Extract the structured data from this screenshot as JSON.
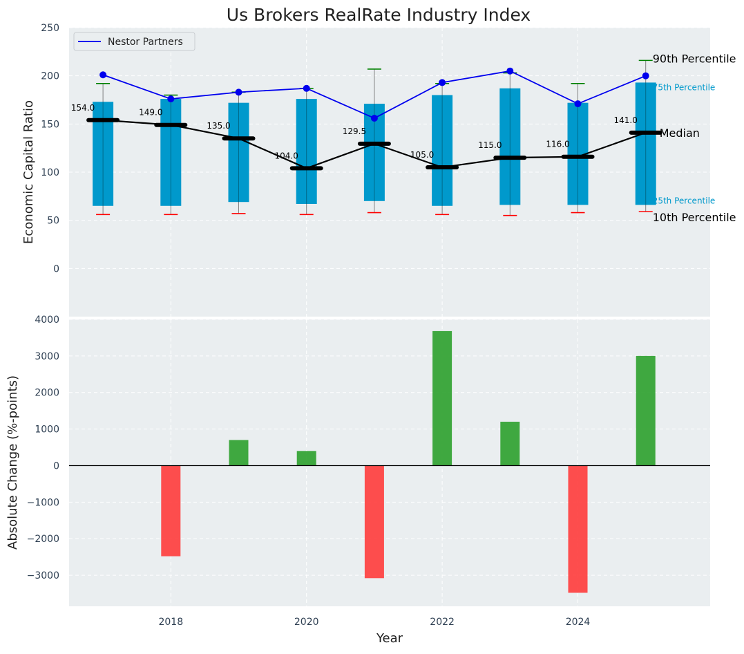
{
  "title": "Us Brokers RealRate Industry Index",
  "colors": {
    "panel_bg": "#eaeef0",
    "box": "#0099cc",
    "median": "#000000",
    "company_line": "#0000ee",
    "whisker_top": "#008000",
    "whisker_bottom": "#ff0000",
    "bar_pos": "#2ca02c",
    "bar_neg": "#ff3b3b",
    "q_label": "#0099cc"
  },
  "chart_data": [
    {
      "type": "box-percentile",
      "ylabel": "Economic Capital Ratio",
      "ylim": [
        -50,
        250
      ],
      "yticks": [
        0,
        50,
        100,
        150,
        200,
        250
      ],
      "xlim": [
        2016.5,
        2025.95
      ],
      "grid": true,
      "legend": {
        "label": "Nestor Partners",
        "placement": "top-left"
      },
      "years": [
        2017,
        2018,
        2019,
        2020,
        2021,
        2022,
        2023,
        2024,
        2025
      ],
      "p10": [
        56,
        56,
        57,
        56,
        58,
        56,
        55,
        58,
        59
      ],
      "p25": [
        65,
        65,
        69,
        67,
        70,
        65,
        66,
        66,
        66
      ],
      "median": [
        154.0,
        149.0,
        135.0,
        104.0,
        129.5,
        105.0,
        115.0,
        116.0,
        141.0
      ],
      "median_labels": [
        "154.0",
        "149.0",
        "135.0",
        "104.0",
        "129.5",
        "105.0",
        "115.0",
        "116.0",
        "141.0"
      ],
      "p75": [
        173,
        176,
        172,
        176,
        171,
        180,
        187,
        172,
        193
      ],
      "p90": [
        192,
        180,
        183,
        187,
        207,
        192,
        203,
        192,
        216
      ],
      "company": [
        201,
        176,
        183,
        187,
        156,
        193,
        205,
        171,
        200
      ],
      "annotations": {
        "p90": "90th Percentile",
        "p75": "75th Percentile",
        "median": "Median",
        "p25": "25th Percentile",
        "p10": "10th Percentile"
      }
    },
    {
      "type": "bar",
      "xlabel": "Year",
      "ylabel": "Absolute Change (%-points)",
      "ylim": [
        -3850,
        4000
      ],
      "yticks": [
        -3000,
        -2000,
        -1000,
        0,
        1000,
        2000,
        3000,
        4000
      ],
      "ytick_labels": [
        "−3000",
        "−2000",
        "−1000",
        "0",
        "1000",
        "2000",
        "3000",
        "4000"
      ],
      "xticks": [
        2018,
        2020,
        2022,
        2024
      ],
      "x": [
        2018,
        2019,
        2020,
        2021,
        2022,
        2023,
        2024,
        2025
      ],
      "values": [
        -2480,
        700,
        400,
        -3080,
        3680,
        1200,
        -3480,
        3000
      ],
      "grid": true
    }
  ]
}
